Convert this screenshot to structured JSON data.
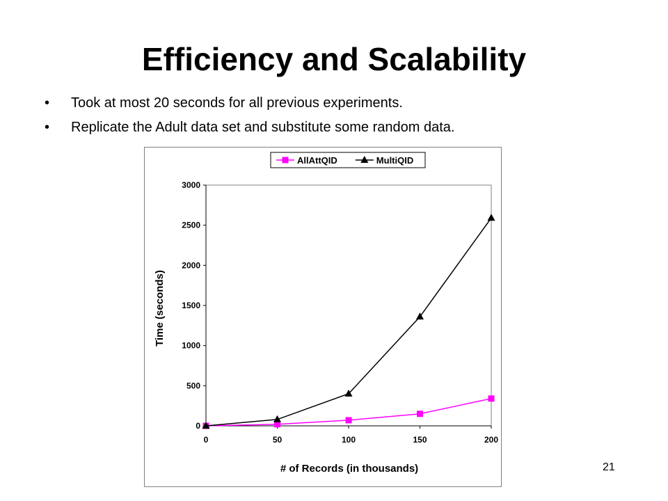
{
  "slide": {
    "title": "Efficiency and Scalability",
    "bullet_marker": "•",
    "bullets": [
      "Took at most 20 seconds for all previous experiments.",
      "Replicate the Adult data set and substitute some random data."
    ],
    "page_number": "21"
  },
  "chart_data": {
    "type": "line",
    "xlabel": "# of Records (in thousands)",
    "ylabel": "Time (seconds)",
    "x": [
      0,
      50,
      100,
      150,
      200
    ],
    "xticks": [
      "0",
      "50",
      "100",
      "150",
      "200"
    ],
    "yticks": [
      "0",
      "500",
      "1000",
      "1500",
      "2000",
      "2500",
      "3000"
    ],
    "xlim": [
      0,
      200
    ],
    "ylim": [
      0,
      3000
    ],
    "grid": false,
    "legend_position": "top",
    "series": [
      {
        "name": "AllAttQID",
        "values": [
          0,
          20,
          70,
          150,
          340
        ],
        "color": "#ff00ff",
        "marker": "square"
      },
      {
        "name": "MultiQID",
        "values": [
          0,
          80,
          400,
          1360,
          2590
        ],
        "color": "#000000",
        "marker": "triangle"
      }
    ]
  }
}
